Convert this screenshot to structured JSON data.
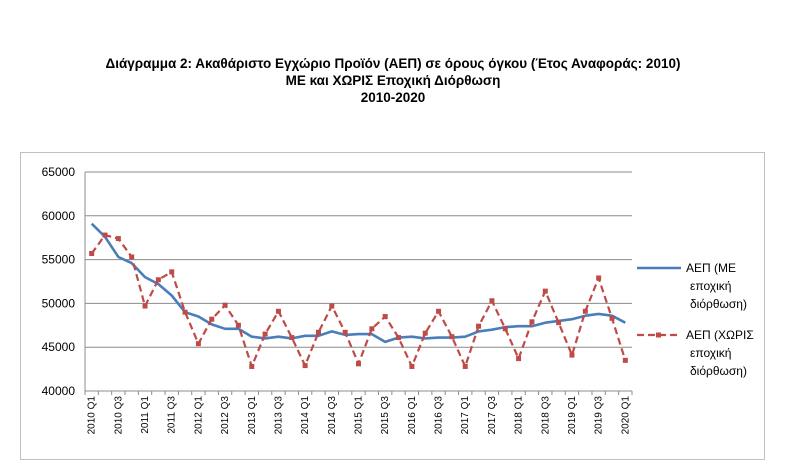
{
  "title": {
    "line1": "Διάγραμμα 2: Ακαθάριστο Εγχώριο Προϊόν (ΑΕΠ) σε όρους όγκου (Έτος Αναφοράς: 2010)",
    "line2": "ΜΕ και ΧΩΡΙΣ Εποχική Διόρθωση",
    "line3": "2010-2020"
  },
  "chart_data": {
    "type": "line",
    "title": "Διάγραμμα 2: Ακαθάριστο Εγχώριο Προϊόν (ΑΕΠ) σε όρους όγκου (Έτος Αναφοράς: 2010) ΜΕ και ΧΩΡΙΣ Εποχική Διόρθωση 2010-2020",
    "xlabel": "",
    "ylabel": "",
    "ylim": [
      40000,
      65000
    ],
    "yticks": [
      40000,
      45000,
      50000,
      55000,
      60000,
      65000
    ],
    "grid": true,
    "legend_position": "right",
    "x": [
      "2010 Q1",
      "2010 Q2",
      "2010 Q3",
      "2010 Q4",
      "2011 Q1",
      "2011 Q2",
      "2011 Q3",
      "2011 Q4",
      "2012 Q1",
      "2012 Q2",
      "2012 Q3",
      "2012 Q4",
      "2013 Q1",
      "2013 Q2",
      "2013 Q3",
      "2013 Q4",
      "2014 Q1",
      "2014 Q2",
      "2014 Q3",
      "2014 Q4",
      "2015 Q1",
      "2015 Q2",
      "2015 Q3",
      "2015 Q4",
      "2016 Q1",
      "2016 Q2",
      "2016 Q3",
      "2016 Q4",
      "2017 Q1",
      "2017 Q2",
      "2017 Q3",
      "2017 Q4",
      "2018 Q1",
      "2018 Q2",
      "2018 Q3",
      "2018 Q4",
      "2019 Q1",
      "2019 Q2",
      "2019 Q3",
      "2019 Q4",
      "2020 Q1"
    ],
    "x_tick_labels": [
      "2010 Q1",
      "2010 Q3",
      "2011 Q1",
      "2011 Q3",
      "2012 Q1",
      "2012 Q3",
      "2013 Q1",
      "2013 Q3",
      "2014 Q1",
      "2014 Q3",
      "2015 Q1",
      "2015 Q3",
      "2016 Q1",
      "2016 Q3",
      "2017 Q1",
      "2017 Q3",
      "2018 Q1",
      "2018 Q3",
      "2019 Q1",
      "2019 Q3",
      "2020 Q1"
    ],
    "series": [
      {
        "name": "ΑΕΠ (ΜΕ εποχική διόρθωση)",
        "legend_lines": [
          "ΑΕΠ (ΜΕ",
          "εποχική",
          "διόρθωση)"
        ],
        "color": "#4a7ebb",
        "style": "solid",
        "values": [
          59100,
          57600,
          55300,
          54600,
          53000,
          52200,
          50900,
          49000,
          48500,
          47600,
          47100,
          47100,
          46200,
          46000,
          46200,
          46000,
          46300,
          46300,
          46800,
          46400,
          46500,
          46500,
          45600,
          46100,
          46200,
          46000,
          46100,
          46100,
          46200,
          46800,
          47000,
          47300,
          47400,
          47400,
          47800,
          48000,
          48200,
          48600,
          48800,
          48600,
          47800
        ]
      },
      {
        "name": "ΑΕΠ (ΧΩΡΙΣ εποχική διόρθωση)",
        "legend_lines": [
          "ΑΕΠ (ΧΩΡΙΣ",
          "εποχική",
          "διόρθωση)"
        ],
        "color": "#be4b48",
        "style": "dashed",
        "marker": "square",
        "values": [
          55700,
          57800,
          57400,
          55300,
          49700,
          52700,
          53600,
          49000,
          45400,
          48200,
          49800,
          47500,
          42800,
          46500,
          49100,
          46100,
          42900,
          46700,
          49700,
          46700,
          43100,
          47100,
          48500,
          46100,
          42800,
          46600,
          49100,
          46200,
          42800,
          47400,
          50300,
          47100,
          43700,
          47900,
          51400,
          47800,
          44100,
          49100,
          52900,
          48300,
          43500
        ]
      }
    ]
  }
}
